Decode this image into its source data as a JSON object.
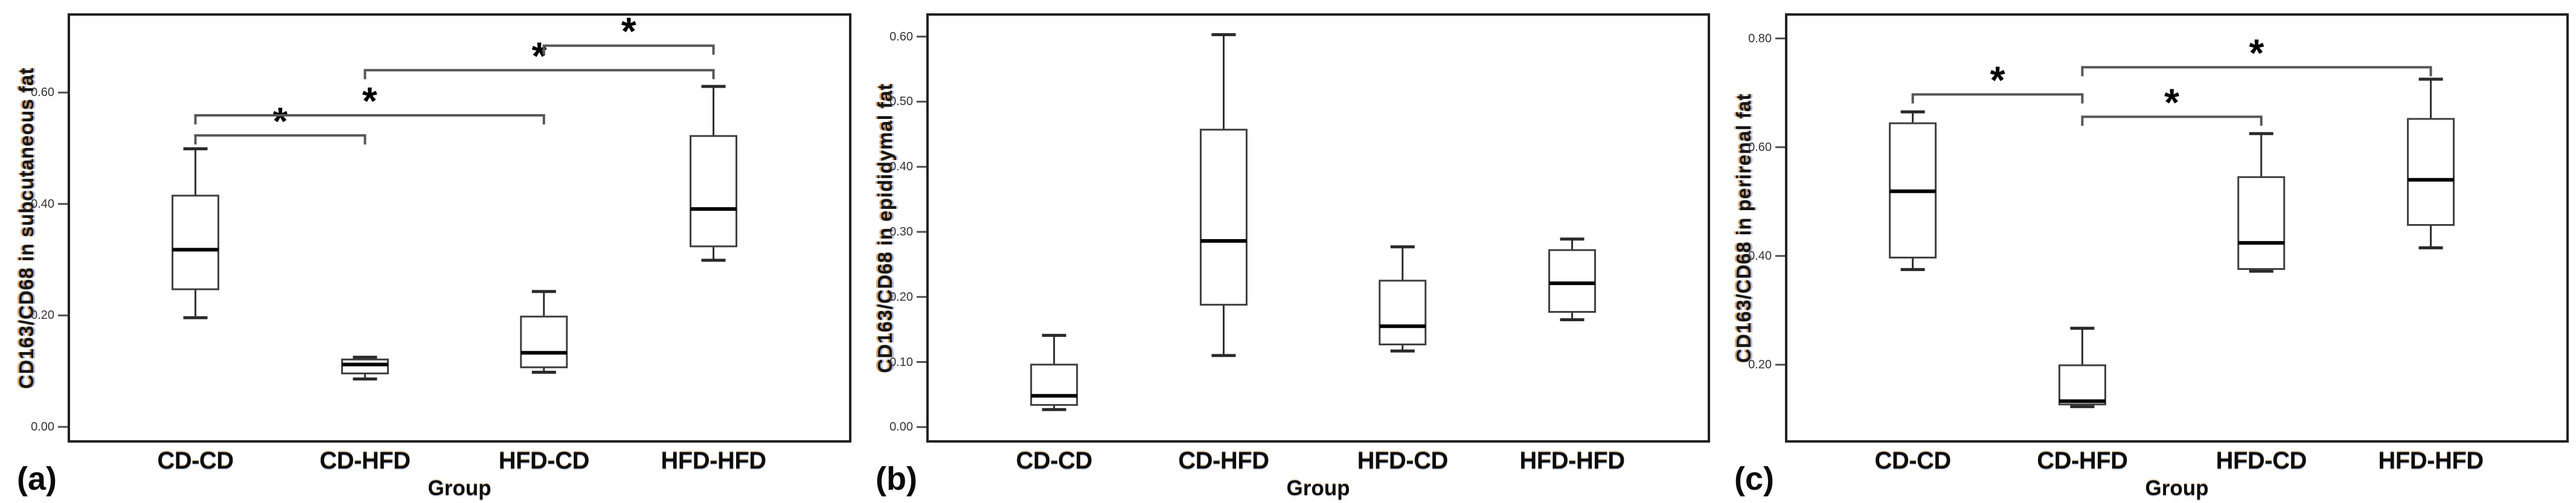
{
  "figure_title": "",
  "chart_data": [
    {
      "type": "box",
      "panel_label": "(a)",
      "ylabel": "CD163/CD68 in subcutaneous fat",
      "xlabel": "Group",
      "categories": [
        "CD-CD",
        "CD-HFD",
        "HFD-CD",
        "HFD-HFD"
      ],
      "ylim": [
        -0.026,
        0.74
      ],
      "grid": false,
      "ytick_values": [
        0.0,
        0.2,
        0.4,
        0.6
      ],
      "ytick_labels": [
        "0.00",
        "0.20",
        "0.40",
        "0.60"
      ],
      "boxes": [
        {
          "group": "CD-CD",
          "whisker_low": 0.196,
          "q1": 0.247,
          "median": 0.318,
          "q3": 0.415,
          "whisker_high": 0.499
        },
        {
          "group": "CD-HFD",
          "whisker_low": 0.086,
          "q1": 0.096,
          "median": 0.112,
          "q3": 0.121,
          "whisker_high": 0.125
        },
        {
          "group": "HFD-CD",
          "whisker_low": 0.098,
          "q1": 0.107,
          "median": 0.133,
          "q3": 0.198,
          "whisker_high": 0.243
        },
        {
          "group": "HFD-HFD",
          "whisker_low": 0.299,
          "q1": 0.324,
          "median": 0.391,
          "q3": 0.522,
          "whisker_high": 0.611
        }
      ],
      "significance": [
        {
          "from": "CD-CD",
          "to": "CD-HFD",
          "y": 0.523,
          "marker": "*"
        },
        {
          "from": "CD-CD",
          "to": "HFD-CD",
          "y": 0.559,
          "marker": "*"
        },
        {
          "from": "CD-HFD",
          "to": "HFD-HFD",
          "y": 0.64,
          "marker": "*"
        },
        {
          "from": "HFD-CD",
          "to": "HFD-HFD",
          "y": 0.684,
          "marker": "*"
        }
      ]
    },
    {
      "type": "box",
      "panel_label": "(b)",
      "ylabel": "CD163/CD68 in epididymal fat",
      "xlabel": "Group",
      "categories": [
        "CD-CD",
        "CD-HFD",
        "HFD-CD",
        "HFD-HFD"
      ],
      "ylim": [
        -0.022,
        0.634
      ],
      "grid": false,
      "ytick_values": [
        0.0,
        0.1,
        0.2,
        0.3,
        0.4,
        0.5,
        0.6
      ],
      "ytick_labels": [
        "0.00",
        "0.10",
        "0.20",
        "0.30",
        "0.40",
        "0.50",
        "0.60"
      ],
      "boxes": [
        {
          "group": "CD-CD",
          "whisker_low": 0.027,
          "q1": 0.034,
          "median": 0.048,
          "q3": 0.096,
          "whisker_high": 0.141
        },
        {
          "group": "CD-HFD",
          "whisker_low": 0.11,
          "q1": 0.188,
          "median": 0.286,
          "q3": 0.457,
          "whisker_high": 0.603
        },
        {
          "group": "HFD-CD",
          "whisker_low": 0.117,
          "q1": 0.127,
          "median": 0.155,
          "q3": 0.225,
          "whisker_high": 0.277
        },
        {
          "group": "HFD-HFD",
          "whisker_low": 0.165,
          "q1": 0.177,
          "median": 0.221,
          "q3": 0.272,
          "whisker_high": 0.289
        }
      ],
      "significance": []
    },
    {
      "type": "box",
      "panel_label": "(c)",
      "ylabel": "CD163/CD68 in perirenal fat",
      "xlabel": "Group",
      "categories": [
        "CD-CD",
        "CD-HFD",
        "HFD-CD",
        "HFD-HFD"
      ],
      "ylim": [
        0.059,
        0.844
      ],
      "grid": false,
      "ytick_values": [
        0.2,
        0.4,
        0.6,
        0.8
      ],
      "ytick_labels": [
        "0.20",
        "0.40",
        "0.60",
        "0.80"
      ],
      "boxes": [
        {
          "group": "CD-CD",
          "whisker_low": 0.375,
          "q1": 0.397,
          "median": 0.519,
          "q3": 0.644,
          "whisker_high": 0.665
        },
        {
          "group": "CD-HFD",
          "whisker_low": 0.123,
          "q1": 0.127,
          "median": 0.133,
          "q3": 0.199,
          "whisker_high": 0.267
        },
        {
          "group": "HFD-CD",
          "whisker_low": 0.372,
          "q1": 0.376,
          "median": 0.424,
          "q3": 0.545,
          "whisker_high": 0.625
        },
        {
          "group": "HFD-HFD",
          "whisker_low": 0.415,
          "q1": 0.457,
          "median": 0.54,
          "q3": 0.652,
          "whisker_high": 0.725
        }
      ],
      "significance": [
        {
          "from": "CD-CD",
          "to": "CD-HFD",
          "y": 0.697,
          "marker": "*"
        },
        {
          "from": "CD-HFD",
          "to": "HFD-CD",
          "y": 0.656,
          "marker": "*"
        },
        {
          "from": "CD-HFD",
          "to": "HFD-HFD",
          "y": 0.747,
          "marker": "*"
        }
      ]
    }
  ]
}
